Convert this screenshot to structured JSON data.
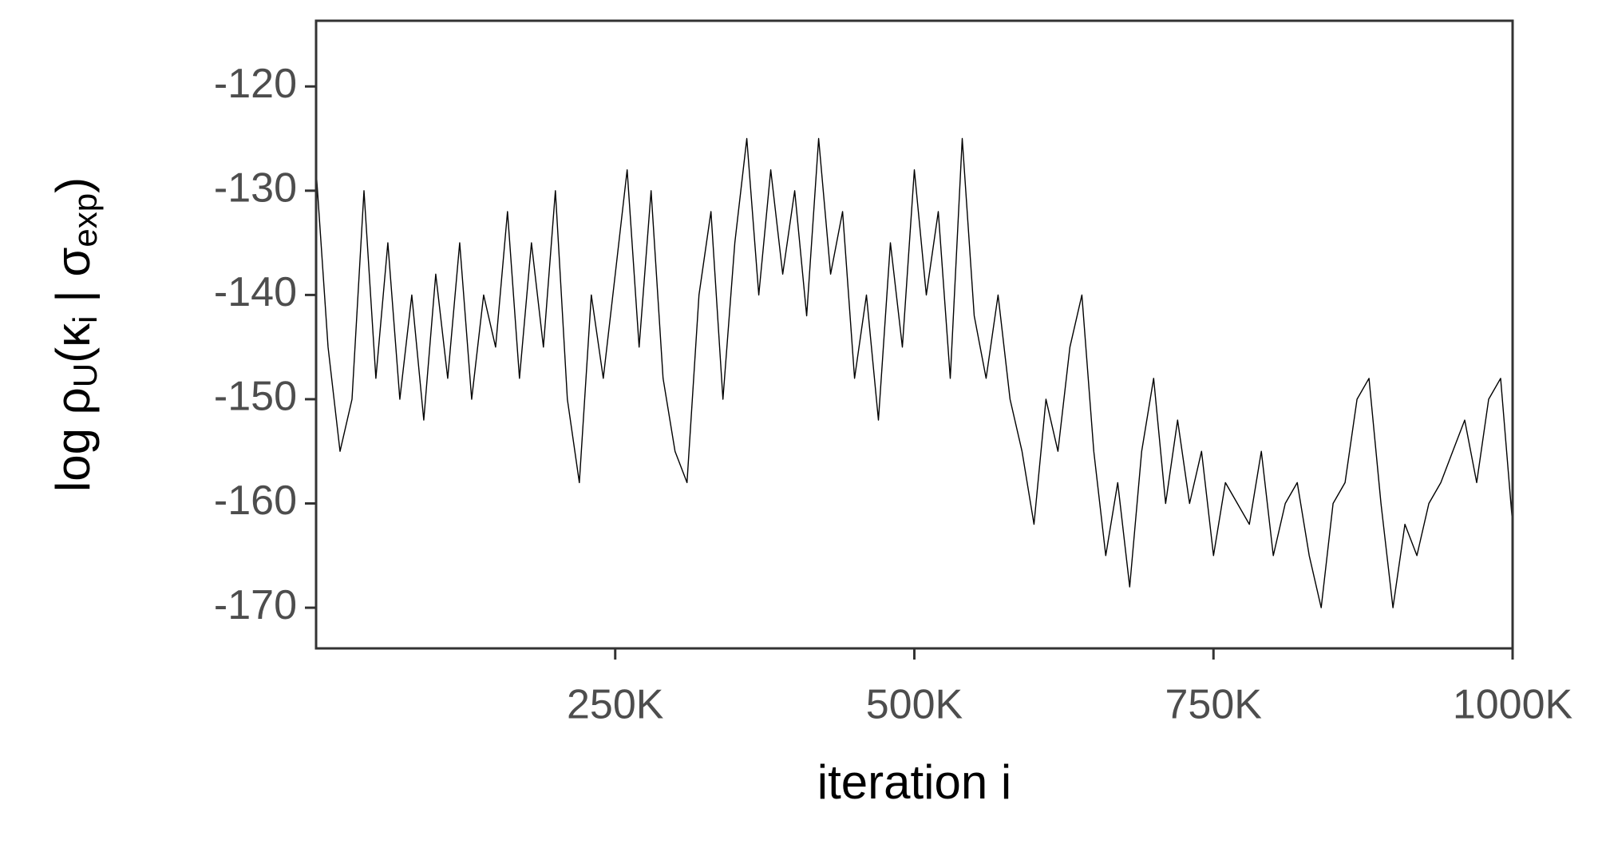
{
  "chart_data": {
    "type": "line",
    "xlabel": "iteration i",
    "ylabel_parts": [
      "log ρ",
      "U",
      "(κ",
      "i",
      " | σ",
      "exp",
      ")"
    ],
    "ylabel_subscript": [
      false,
      true,
      false,
      true,
      false,
      true,
      false
    ],
    "x": [
      0,
      10000,
      20000,
      30000,
      40000,
      50000,
      60000,
      70000,
      80000,
      90000,
      100000,
      110000,
      120000,
      130000,
      140000,
      150000,
      160000,
      170000,
      180000,
      190000,
      200000,
      210000,
      220000,
      230000,
      240000,
      250000,
      260000,
      270000,
      280000,
      290000,
      300000,
      310000,
      320000,
      330000,
      340000,
      350000,
      360000,
      370000,
      380000,
      390000,
      400000,
      410000,
      420000,
      430000,
      440000,
      450000,
      460000,
      470000,
      480000,
      490000,
      500000,
      510000,
      520000,
      530000,
      540000,
      550000,
      560000,
      570000,
      580000,
      590000,
      600000,
      610000,
      620000,
      630000,
      640000,
      650000,
      660000,
      670000,
      680000,
      690000,
      700000,
      710000,
      720000,
      730000,
      740000,
      750000,
      760000,
      770000,
      780000,
      790000,
      800000,
      810000,
      820000,
      830000,
      840000,
      850000,
      860000,
      870000,
      880000,
      890000,
      900000,
      910000,
      920000,
      930000,
      940000,
      950000,
      960000,
      970000,
      980000,
      990000,
      1000000
    ],
    "series": [
      {
        "name": "trace",
        "color": "#000000",
        "values": [
          -128,
          -145,
          -155,
          -150,
          -130,
          -148,
          -135,
          -150,
          -140,
          -152,
          -138,
          -148,
          -135,
          -150,
          -140,
          -145,
          -132,
          -148,
          -135,
          -145,
          -130,
          -150,
          -158,
          -140,
          -148,
          -138,
          -128,
          -145,
          -130,
          -148,
          -155,
          -158,
          -140,
          -132,
          -150,
          -135,
          -125,
          -140,
          -128,
          -138,
          -130,
          -142,
          -125,
          -138,
          -132,
          -148,
          -140,
          -152,
          -135,
          -145,
          -128,
          -140,
          -132,
          -148,
          -125,
          -142,
          -148,
          -140,
          -150,
          -155,
          -162,
          -150,
          -155,
          -145,
          -140,
          -155,
          -165,
          -158,
          -168,
          -155,
          -148,
          -160,
          -152,
          -160,
          -155,
          -165,
          -158,
          -160,
          -162,
          -155,
          -165,
          -160,
          -158,
          -165,
          -170,
          -160,
          -158,
          -150,
          -148,
          -160,
          -170,
          -162,
          -165,
          -160,
          -158,
          -155,
          -152,
          -158,
          -150,
          -148,
          -162
        ]
      }
    ],
    "xlim": [
      0,
      1000000
    ],
    "xticks": [
      {
        "value": 250000,
        "label": "250K"
      },
      {
        "value": 500000,
        "label": "500K"
      },
      {
        "value": 750000,
        "label": "750K"
      },
      {
        "value": 1000000,
        "label": "1000K"
      }
    ],
    "ylim": [
      -173.9,
      -113.7
    ],
    "yticks": [
      -170,
      -160,
      -150,
      -140,
      -130,
      -120
    ],
    "grid": false
  }
}
